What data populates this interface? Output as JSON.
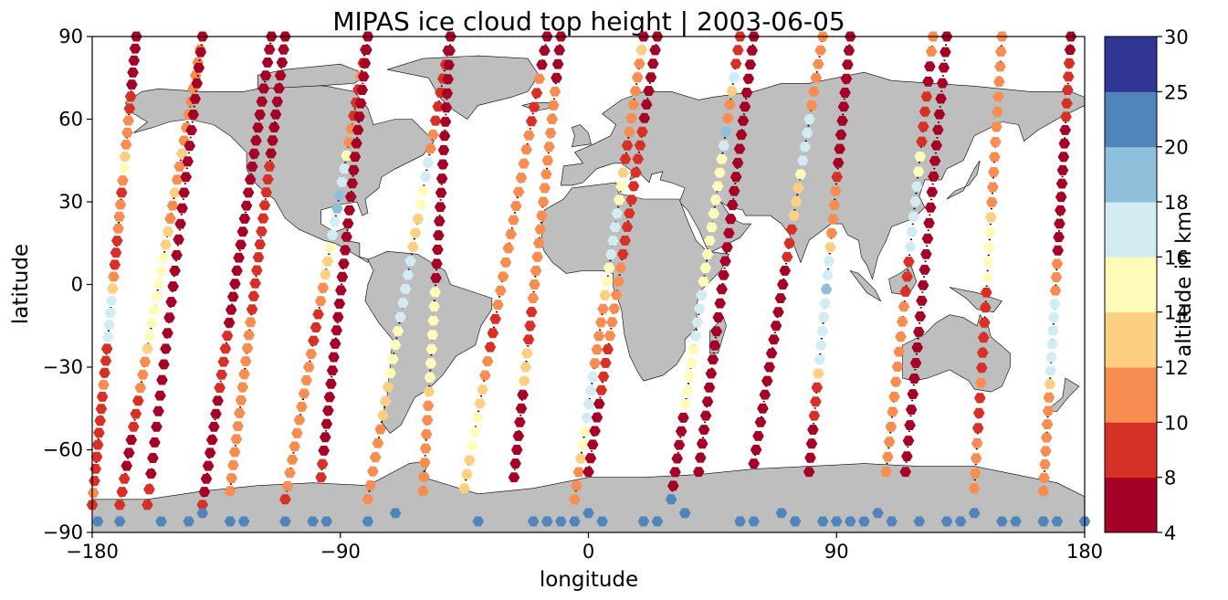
{
  "chart_data": {
    "type": "scatter",
    "title": "MIPAS ice cloud top height | 2003-06-05",
    "xlabel": "longitude",
    "ylabel": "latitude",
    "xlim": [
      -180,
      180
    ],
    "ylim": [
      -90,
      90
    ],
    "x_ticks": [
      "−180",
      "−90",
      "0",
      "90",
      "180"
    ],
    "y_ticks": [
      "90",
      "60",
      "30",
      "0",
      "−30",
      "−60",
      "−90"
    ],
    "grid": false,
    "background_map": "world-coastlines-land-grey",
    "land_color": "#bebebe",
    "colorbar": {
      "label": "altitude in km",
      "boundaries": [
        4,
        8,
        10,
        12,
        14,
        16,
        18,
        20,
        25,
        30
      ],
      "tick_labels": [
        "4",
        "8",
        "10",
        "12",
        "14",
        "16",
        "18",
        "20",
        "25",
        "30"
      ],
      "colors": [
        "#a50026",
        "#d73027",
        "#f88d52",
        "#fdd081",
        "#fffbb9",
        "#d3ecf4",
        "#8ebfdb",
        "#4f85bb",
        "#313695"
      ],
      "placement": "right"
    },
    "tracks": [
      {
        "lat_start": 90,
        "lon_start": -164,
        "lon_end": -180,
        "lat_end": -80,
        "values": [
          4,
          4,
          4,
          4,
          4,
          9,
          9,
          11,
          11,
          11,
          12,
          14,
          11,
          9,
          11,
          11,
          11,
          9,
          9,
          9,
          11,
          13,
          16,
          16,
          16,
          16,
          9,
          9,
          9,
          11,
          9,
          9,
          9,
          9,
          9,
          9,
          9,
          9,
          11,
          9
        ]
      },
      {
        "lat_start": -80,
        "lon_start": -170,
        "lon_end": -140,
        "lat_end": 90,
        "values": [
          9,
          9,
          9,
          4,
          4,
          4,
          9,
          9,
          9,
          11,
          11,
          11,
          12,
          14,
          15,
          15,
          15,
          15,
          15,
          15,
          13,
          12,
          11,
          11,
          12,
          11,
          11,
          12,
          11,
          11,
          11,
          11,
          11,
          11,
          11,
          11,
          11
        ]
      },
      {
        "lat_start": 90,
        "lon_start": -140,
        "lon_end": -160,
        "lat_end": -80,
        "values": [
          4,
          4,
          4,
          4,
          4,
          4,
          4,
          4,
          4,
          4,
          4,
          4,
          4,
          4,
          4,
          4,
          4,
          4,
          4,
          4,
          4,
          4,
          4,
          4,
          4,
          4,
          4,
          4,
          4,
          9,
          9
        ]
      },
      {
        "lat_start": -80,
        "lon_start": -140,
        "lon_end": -115,
        "lat_end": 90,
        "values": [
          9,
          4,
          4,
          4,
          4,
          4,
          4,
          4,
          4,
          9,
          9,
          9,
          9,
          9,
          4,
          4,
          4,
          4,
          4,
          4,
          4,
          4,
          4,
          4,
          4,
          4,
          4,
          4,
          4,
          4,
          4,
          4,
          4,
          4,
          4,
          4,
          4
        ]
      },
      {
        "lat_start": 90,
        "lon_start": -110,
        "lon_end": -130,
        "lat_end": -75,
        "values": [
          4,
          4,
          4,
          4,
          4,
          4,
          4,
          4,
          4,
          4,
          9,
          9,
          9,
          9,
          9,
          9,
          9,
          9,
          9,
          9,
          9,
          9,
          11,
          11,
          11,
          11,
          11,
          11,
          11,
          11,
          11,
          11,
          11,
          11,
          11,
          11
        ]
      },
      {
        "lat_start": -78,
        "lon_start": -110,
        "lon_end": -80,
        "lat_end": 90,
        "values": [
          9,
          11,
          11,
          11,
          11,
          11,
          11,
          11,
          11,
          11,
          11,
          11,
          9,
          9,
          9,
          11,
          11,
          12,
          12,
          14,
          16,
          17,
          18,
          18,
          16,
          16,
          14,
          11,
          11,
          9,
          9,
          9,
          11,
          9,
          4,
          4
        ]
      },
      {
        "lat_start": 90,
        "lon_start": -80,
        "lon_end": -97,
        "lat_end": -70,
        "values": [
          4,
          4,
          4,
          4,
          4,
          4,
          4,
          4,
          4,
          4,
          4,
          4,
          4,
          4,
          4,
          4,
          4,
          4,
          4,
          4,
          4,
          4,
          4,
          4,
          4,
          4,
          4,
          4,
          4,
          4,
          4,
          4,
          9,
          9
        ]
      },
      {
        "lat_start": -78,
        "lon_start": -80,
        "lon_end": -50,
        "lat_end": 90,
        "values": [
          11,
          11,
          11,
          11,
          11,
          11,
          13,
          13,
          13,
          14,
          14,
          15,
          15,
          16,
          16,
          16,
          17,
          16,
          13,
          13,
          13,
          14,
          14,
          17,
          16,
          11,
          11,
          9,
          9,
          9,
          9,
          9,
          4,
          4
        ]
      },
      {
        "lat_start": 90,
        "lon_start": -50,
        "lon_end": -60,
        "lat_end": -75,
        "values": [
          4,
          4,
          4,
          4,
          4,
          4,
          4,
          4,
          4,
          4,
          4,
          4,
          4,
          4,
          4,
          4,
          4,
          4,
          14,
          15,
          15,
          15,
          15,
          15,
          14,
          13,
          11,
          11,
          11,
          11,
          11,
          11,
          11
        ]
      },
      {
        "lat_start": -74,
        "lon_start": -45,
        "lon_end": -15,
        "lat_end": 90,
        "values": [
          13,
          13,
          13,
          15,
          15,
          14,
          13,
          12,
          11,
          11,
          9,
          9,
          9,
          11,
          11,
          11,
          11,
          11,
          11,
          11,
          11,
          11,
          11,
          11,
          11,
          11,
          9,
          9,
          9,
          11,
          4,
          4,
          4
        ]
      },
      {
        "lat_start": 90,
        "lon_start": -10,
        "lon_end": -27,
        "lat_end": -70,
        "values": [
          4,
          4,
          4,
          4,
          11,
          11,
          11,
          11,
          11,
          11,
          11,
          11,
          11,
          11,
          11,
          11,
          11,
          11,
          11,
          11,
          9,
          9,
          9,
          13,
          13,
          13,
          4,
          4,
          4,
          4,
          4,
          4,
          4
        ]
      },
      {
        "lat_start": -78,
        "lon_start": -5,
        "lon_end": 20,
        "lat_end": 90,
        "values": [
          11,
          11,
          11,
          13,
          15,
          15,
          16,
          16,
          16,
          16,
          11,
          11,
          11,
          11,
          11,
          13,
          15,
          15,
          16,
          16,
          16,
          16,
          15,
          15,
          13,
          9,
          9,
          11,
          11,
          11,
          11,
          11,
          11,
          13,
          4
        ]
      },
      {
        "lat_start": 90,
        "lon_start": 25,
        "lon_end": 0,
        "lat_end": -68,
        "values": [
          4,
          4,
          4,
          4,
          4,
          4,
          4,
          9,
          9,
          9,
          9,
          9,
          9,
          9,
          9,
          9,
          9,
          11,
          11,
          11,
          11,
          11,
          11,
          9,
          9,
          9,
          9,
          4,
          4,
          4,
          4,
          4,
          4
        ]
      },
      {
        "lat_start": -78,
        "lon_start": 30,
        "lon_end": 55,
        "lat_end": 90,
        "values": [
          21,
          4,
          4,
          4,
          4,
          4,
          4,
          15,
          15,
          15,
          15,
          15,
          16,
          17,
          16,
          16,
          15,
          15,
          15,
          15,
          15,
          15,
          15,
          15,
          15,
          15,
          16,
          18,
          11,
          11,
          13,
          16,
          9,
          9,
          9
        ]
      },
      {
        "lat_start": 90,
        "lon_start": 60,
        "lon_end": 40,
        "lat_end": -68,
        "values": [
          4,
          4,
          4,
          4,
          4,
          4,
          4,
          4,
          4,
          4,
          4,
          4,
          4,
          4,
          4,
          4,
          4,
          4,
          4,
          4,
          4,
          4,
          4,
          4,
          4,
          4,
          4,
          4,
          4,
          4,
          4,
          4
        ]
      },
      {
        "lat_start": -65,
        "lon_start": 60,
        "lon_end": 85,
        "lat_end": 90,
        "values": [
          4,
          4,
          4,
          4,
          4,
          4,
          4,
          4,
          4,
          4,
          4,
          4,
          4,
          4,
          4,
          9,
          9,
          9,
          13,
          13,
          13,
          15,
          16,
          17,
          16,
          16,
          11,
          11,
          11,
          11,
          11,
          11
        ]
      },
      {
        "lat_start": 90,
        "lon_start": 95,
        "lon_end": 80,
        "lat_end": -68,
        "values": [
          4,
          4,
          4,
          4,
          4,
          4,
          4,
          4,
          4,
          4,
          9,
          11,
          11,
          11,
          11,
          13,
          16,
          16,
          18,
          16,
          16,
          16,
          16,
          16,
          13,
          9,
          9,
          9,
          4,
          4,
          4,
          4
        ]
      },
      {
        "lat_start": -68,
        "lon_start": 108,
        "lon_end": 125,
        "lat_end": 90,
        "values": [
          11,
          11,
          11,
          11,
          11,
          11,
          11,
          11,
          11,
          11,
          11,
          11,
          9,
          9,
          9,
          17,
          17,
          16,
          16,
          16,
          15,
          15,
          9,
          9,
          9,
          9,
          4,
          4,
          11,
          11
        ]
      },
      {
        "lat_start": 90,
        "lon_start": 130,
        "lon_end": 115,
        "lat_end": -68,
        "values": [
          4,
          4,
          4,
          4,
          4,
          4,
          4,
          4,
          4,
          4,
          4,
          4,
          4,
          4,
          4,
          4,
          4,
          4,
          4,
          4,
          4,
          4,
          4,
          4,
          4,
          4,
          4,
          4,
          4
        ]
      },
      {
        "lat_start": -74,
        "lon_start": 140,
        "lon_end": 150,
        "lat_end": 90,
        "values": [
          11,
          11,
          11,
          11,
          9,
          9,
          9,
          11,
          9,
          9,
          9,
          9,
          9,
          9,
          15,
          15,
          15,
          14,
          13,
          11,
          11,
          11,
          11,
          11,
          11,
          11,
          11,
          11,
          11,
          11,
          11
        ]
      },
      {
        "lat_start": 90,
        "lon_start": 175,
        "lon_end": 165,
        "lat_end": -75,
        "values": [
          4,
          4,
          9,
          9,
          9,
          9,
          9,
          4,
          4,
          4,
          4,
          4,
          4,
          4,
          4,
          4,
          4,
          11,
          11,
          11,
          17,
          17,
          16,
          16,
          16,
          16,
          13,
          11,
          11,
          11,
          11,
          11,
          11,
          11,
          11
        ]
      }
    ],
    "antarctic_points": {
      "lat": -86,
      "lon": [
        -178,
        -170,
        -155,
        -145,
        -140,
        -130,
        -125,
        -110,
        -100,
        -95,
        -80,
        -70,
        -40,
        -20,
        -15,
        -10,
        -5,
        0,
        5,
        20,
        25,
        35,
        55,
        60,
        70,
        75,
        85,
        90,
        95,
        100,
        105,
        110,
        120,
        130,
        135,
        140,
        150,
        155,
        165,
        170,
        180
      ],
      "value": 21
    }
  }
}
